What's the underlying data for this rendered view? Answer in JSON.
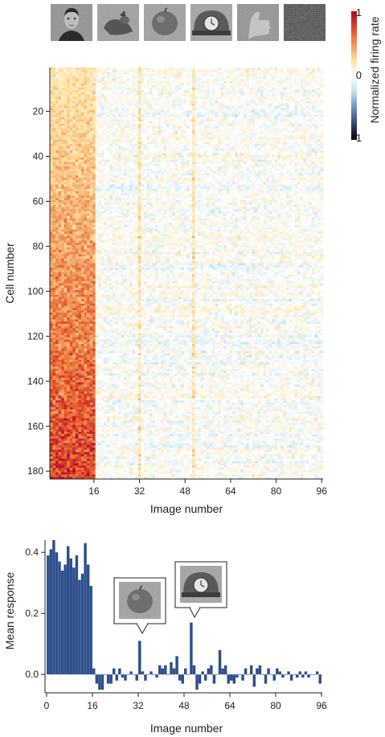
{
  "chart_data": [
    {
      "type": "heatmap",
      "xlabel": "Image number",
      "ylabel": "Cell number",
      "x_ticks": [
        "16",
        "32",
        "48",
        "64",
        "80",
        "96"
      ],
      "y_ticks": [
        "20",
        "40",
        "60",
        "80",
        "100",
        "120",
        "140",
        "160",
        "180"
      ],
      "x_range": [
        1,
        96
      ],
      "y_range": [
        1,
        183
      ],
      "n_images": 96,
      "n_cells": 183,
      "face_images": 16,
      "colorbar": {
        "label": "Normalized firing rate",
        "ticks": [
          "1",
          "0",
          "-1"
        ],
        "range": [
          -1,
          1
        ],
        "colors": [
          "#b40426",
          "#e8602c",
          "#fde2a0",
          "#ffffff",
          "#bfe3f0",
          "#4b74b0",
          "#000000"
        ]
      },
      "example_images": [
        "face",
        "animal",
        "apple",
        "clock",
        "hand",
        "noise"
      ]
    },
    {
      "type": "bar",
      "xlabel": "Image number",
      "ylabel": "Mean response",
      "x_ticks": [
        "0",
        "16",
        "32",
        "48",
        "64",
        "80",
        "96"
      ],
      "y_ticks": [
        "0.0",
        "0.2",
        "0.4"
      ],
      "xlim": [
        0,
        96
      ],
      "ylim": [
        -0.06,
        0.44
      ],
      "bar_color": "#2e4f8c",
      "values": [
        0.39,
        0.41,
        0.44,
        0.4,
        0.37,
        0.34,
        0.36,
        0.42,
        0.38,
        0.35,
        0.39,
        0.31,
        0.33,
        0.43,
        0.36,
        0.29,
        0.02,
        -0.03,
        -0.05,
        -0.05,
        0.0,
        -0.03,
        -0.03,
        0.02,
        -0.02,
        0.02,
        -0.01,
        -0.02,
        0.0,
        0.01,
        0.0,
        -0.02,
        0.11,
        0.01,
        -0.02,
        0.0,
        0.01,
        0.0,
        -0.01,
        0.03,
        0.02,
        0.03,
        0.0,
        0.04,
        0.02,
        0.06,
        -0.02,
        -0.03,
        0.02,
        0.0,
        0.17,
        0.03,
        -0.05,
        -0.03,
        0.01,
        -0.02,
        0.02,
        0.03,
        -0.03,
        0.0,
        0.08,
        0.02,
        0.03,
        -0.03,
        -0.02,
        -0.03,
        -0.01,
        0.0,
        -0.02,
        0.02,
        0.0,
        0.03,
        -0.04,
        0.02,
        0.03,
        0.0,
        -0.03,
        0.02,
        0.0,
        -0.02,
        0.02,
        0.01,
        -0.01,
        0.0,
        0.01,
        -0.02,
        0.0,
        -0.01,
        0.01,
        -0.01,
        0.01,
        -0.01,
        0.0,
        0.0,
        0.01,
        -0.03
      ],
      "callouts": [
        {
          "image_number": 32,
          "picture": "apple"
        },
        {
          "image_number": 51,
          "picture": "clock"
        }
      ]
    }
  ]
}
